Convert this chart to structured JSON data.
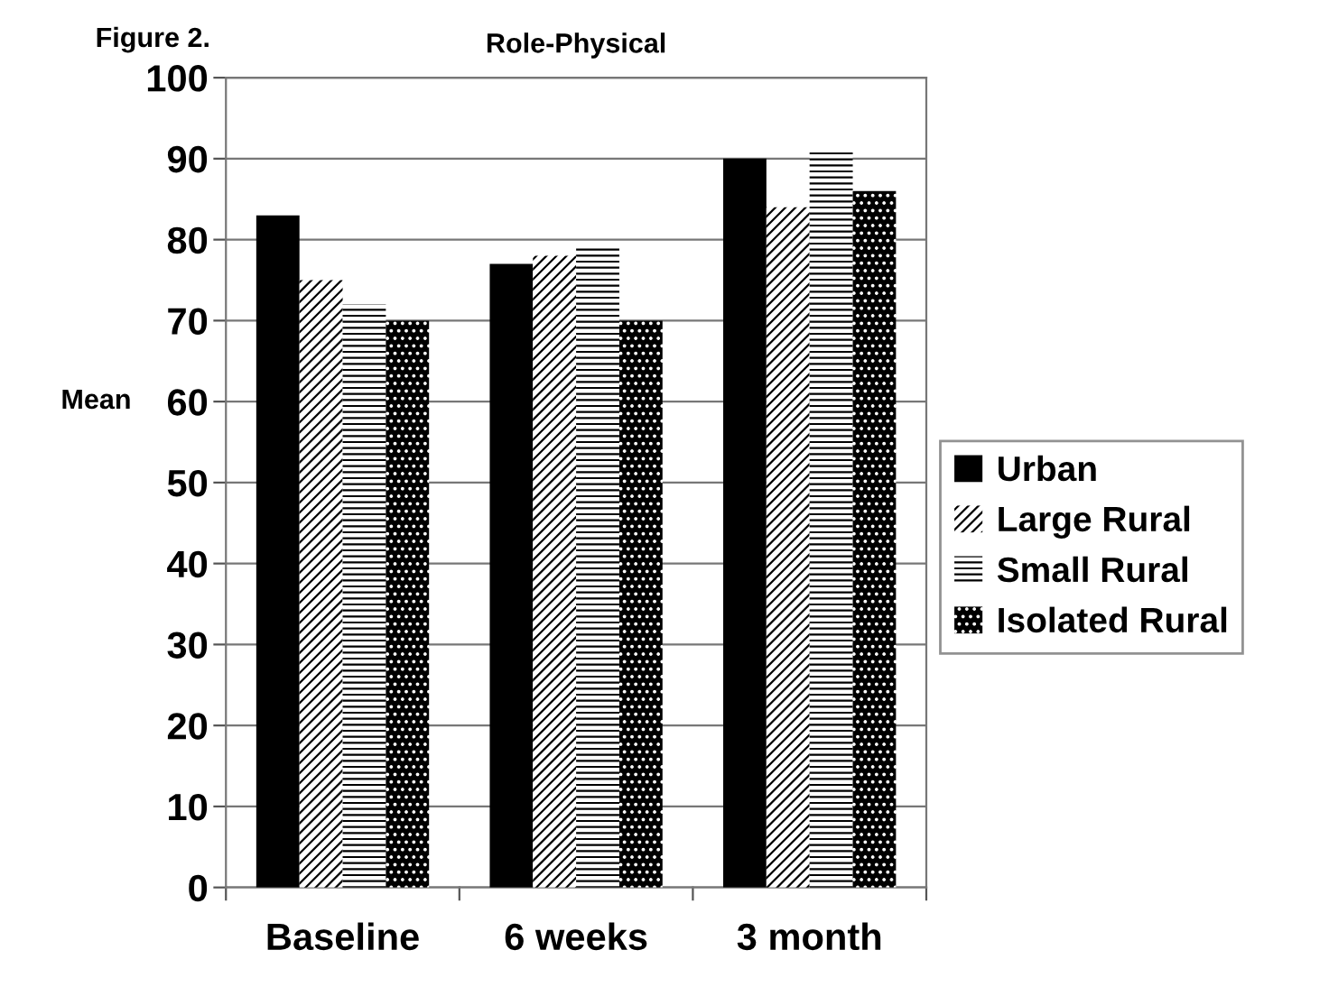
{
  "chart_data": {
    "type": "bar",
    "title": "Role-Physical",
    "ylabel": "Mean",
    "annotations": [
      "Figure 2."
    ],
    "categories": [
      "Baseline",
      "6 weeks",
      "3 month"
    ],
    "series": [
      {
        "name": "Urban",
        "color": "#000000",
        "values": [
          83,
          77,
          90
        ]
      },
      {
        "name": "Large Rural",
        "color": "#000000",
        "values": [
          75,
          78,
          84
        ]
      },
      {
        "name": "Small Rural",
        "color": "#000000",
        "values": [
          72,
          79,
          91
        ]
      },
      {
        "name": "Isolated Rural",
        "color": "#000000",
        "values": [
          70,
          70,
          86
        ]
      }
    ],
    "ylim": [
      0,
      100
    ],
    "yticks": [
      0,
      10,
      20,
      30,
      40,
      50,
      60,
      70,
      80,
      90,
      100
    ],
    "grid": "y",
    "legend": "right"
  }
}
